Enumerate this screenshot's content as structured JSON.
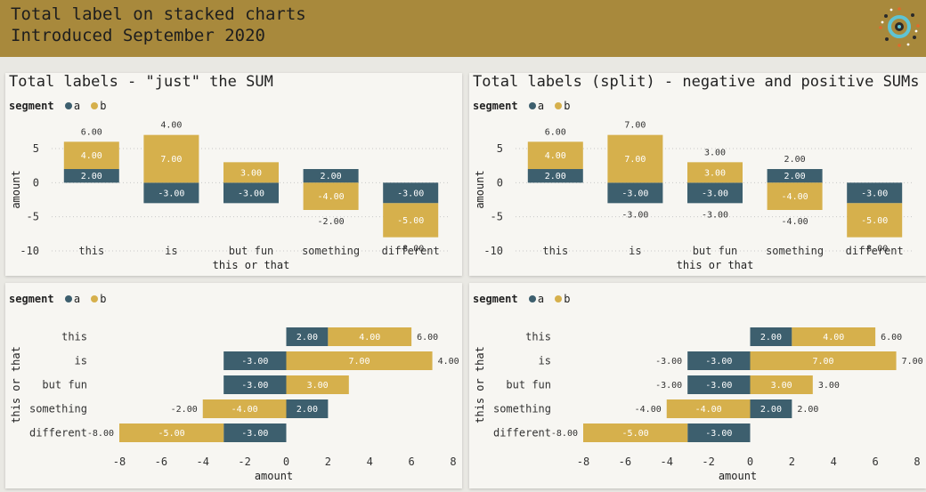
{
  "header": {
    "line1": "Total label on stacked charts",
    "line2": "Introduced September 2020"
  },
  "colors": {
    "header_bg": "#a8893c",
    "series_a": "#3d5f6e",
    "series_b": "#d6b04c",
    "panel_bg": "#f7f6f2",
    "page_bg": "#e9e8e3"
  },
  "legend": {
    "title": "segment",
    "items": [
      "a",
      "b"
    ]
  },
  "panels": {
    "top_left": {
      "title": "Total labels - \"just\" the SUM"
    },
    "top_right": {
      "title": "Total labels (split) - negative and positive SUMs"
    }
  },
  "chart_data": [
    {
      "type": "bar",
      "orientation": "vertical",
      "stacked": true,
      "title": "Total labels - \"just\" the SUM",
      "xlabel": "this or that",
      "ylabel": "amount",
      "categories": [
        "this",
        "is",
        "but fun",
        "something",
        "different"
      ],
      "series": [
        {
          "name": "a",
          "values": [
            2,
            -3,
            -3,
            2,
            -3
          ]
        },
        {
          "name": "b",
          "values": [
            4,
            7,
            3,
            -4,
            -5
          ]
        }
      ],
      "value_labels": [
        [
          "2.00",
          "-3.00",
          "-3.00",
          "2.00",
          "-3.00"
        ],
        [
          "4.00",
          "7.00",
          "3.00",
          "-4.00",
          "-5.00"
        ]
      ],
      "total_mode": "sum",
      "totals": [
        {
          "value": "6.00",
          "side": "top"
        },
        {
          "value": "4.00",
          "side": "top"
        },
        null,
        {
          "value": "-2.00",
          "side": "bottom"
        },
        {
          "value": "-8.00",
          "side": "bottom"
        }
      ],
      "yticks": [
        "5",
        "0",
        "-5",
        "-10"
      ],
      "ylim": [
        -10,
        8
      ],
      "grid": true,
      "legend_position": "top-left"
    },
    {
      "type": "bar",
      "orientation": "vertical",
      "stacked": true,
      "title": "Total labels (split) - negative and positive SUMs",
      "xlabel": "this or that",
      "ylabel": "amount",
      "categories": [
        "this",
        "is",
        "but fun",
        "something",
        "different"
      ],
      "series": [
        {
          "name": "a",
          "values": [
            2,
            -3,
            -3,
            2,
            -3
          ]
        },
        {
          "name": "b",
          "values": [
            4,
            7,
            3,
            -4,
            -5
          ]
        }
      ],
      "value_labels": [
        [
          "2.00",
          "-3.00",
          "-3.00",
          "2.00",
          "-3.00"
        ],
        [
          "4.00",
          "7.00",
          "3.00",
          "-4.00",
          "-5.00"
        ]
      ],
      "total_mode": "split",
      "pos_totals": [
        "6.00",
        "7.00",
        "3.00",
        "2.00",
        null
      ],
      "neg_totals": [
        null,
        "-3.00",
        "-3.00",
        "-4.00",
        "-8.00"
      ],
      "yticks": [
        "5",
        "0",
        "-5",
        "-10"
      ],
      "ylim": [
        -10,
        8
      ],
      "grid": true,
      "legend_position": "top-left"
    },
    {
      "type": "bar",
      "orientation": "horizontal",
      "stacked": true,
      "xlabel": "amount",
      "ylabel": "this or that",
      "categories": [
        "this",
        "is",
        "but fun",
        "something",
        "different"
      ],
      "series": [
        {
          "name": "a",
          "values": [
            2,
            -3,
            -3,
            2,
            -3
          ]
        },
        {
          "name": "b",
          "values": [
            4,
            7,
            3,
            -4,
            -5
          ]
        }
      ],
      "value_labels": [
        [
          "2.00",
          "-3.00",
          "-3.00",
          "2.00",
          "-3.00"
        ],
        [
          "4.00",
          "7.00",
          "3.00",
          "-4.00",
          "-5.00"
        ]
      ],
      "total_mode": "sum",
      "totals": [
        {
          "value": "6.00",
          "side": "right"
        },
        {
          "value": "4.00",
          "side": "right"
        },
        null,
        {
          "value": "-2.00",
          "side": "left"
        },
        {
          "value": "-8.00",
          "side": "left"
        }
      ],
      "xticks": [
        "-8",
        "-6",
        "-4",
        "-2",
        "0",
        "2",
        "4",
        "6",
        "8"
      ],
      "xlim": [
        -8,
        8
      ],
      "grid": false,
      "legend_position": "top-left"
    },
    {
      "type": "bar",
      "orientation": "horizontal",
      "stacked": true,
      "xlabel": "amount",
      "ylabel": "this or that",
      "categories": [
        "this",
        "is",
        "but fun",
        "something",
        "different"
      ],
      "series": [
        {
          "name": "a",
          "values": [
            2,
            -3,
            -3,
            2,
            -3
          ]
        },
        {
          "name": "b",
          "values": [
            4,
            7,
            3,
            -4,
            -5
          ]
        }
      ],
      "value_labels": [
        [
          "2.00",
          "-3.00",
          "-3.00",
          "2.00",
          "-3.00"
        ],
        [
          "4.00",
          "7.00",
          "3.00",
          "-4.00",
          "-5.00"
        ]
      ],
      "total_mode": "split",
      "pos_totals": [
        "6.00",
        "7.00",
        "3.00",
        "2.00",
        null
      ],
      "neg_totals": [
        null,
        "-3.00",
        "-3.00",
        "-4.00",
        "-8.00"
      ],
      "xticks": [
        "-8",
        "-6",
        "-4",
        "-2",
        "0",
        "2",
        "4",
        "6",
        "8"
      ],
      "xlim": [
        -8,
        8
      ],
      "grid": false,
      "legend_position": "top-left"
    }
  ]
}
